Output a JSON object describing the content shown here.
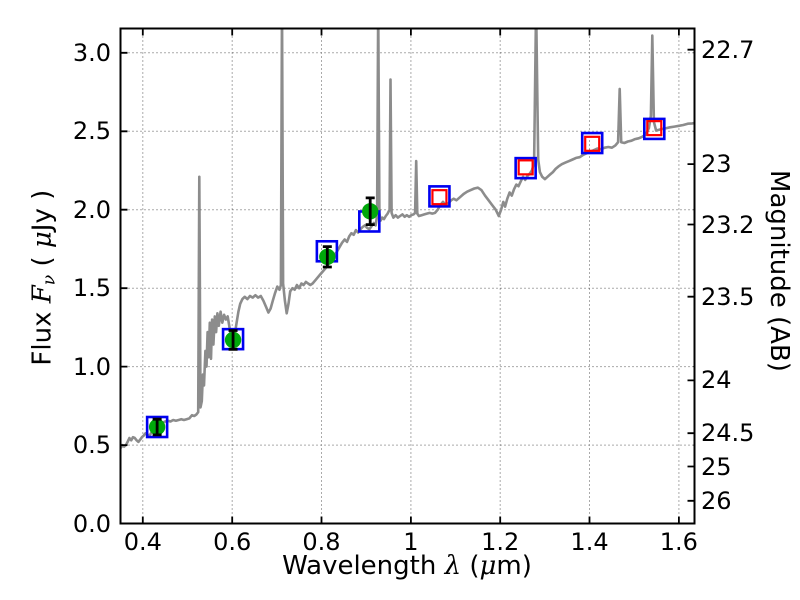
{
  "figure": {
    "background": "#ffffff",
    "frame_color": "#000000",
    "grid_color": "#555555",
    "grid_style": "dotted"
  },
  "chart_data": {
    "type": "line",
    "title": "",
    "xlabel_segments": [
      {
        "text": "Wavelength  ",
        "style": "plain"
      },
      {
        "text": "λ",
        "style": "math"
      },
      {
        "text": " (",
        "style": "plain"
      },
      {
        "text": "μ",
        "style": "math"
      },
      {
        "text": "m)",
        "style": "plain"
      }
    ],
    "ylabel_left_segments": [
      {
        "text": "Flux  ",
        "style": "plain"
      },
      {
        "text": "F",
        "style": "math"
      },
      {
        "text": "ν",
        "style": "sub"
      },
      {
        "text": "  ( ",
        "style": "plain"
      },
      {
        "text": "μ",
        "style": "math"
      },
      {
        "text": "Jy )",
        "style": "plain"
      }
    ],
    "ylabel_right_segments": [
      {
        "text": "Magnitude (AB)",
        "style": "plain"
      }
    ],
    "xlim": [
      0.35,
      1.635
    ],
    "ylim": [
      0.0,
      3.155
    ],
    "grid": true,
    "legend": "none",
    "x_ticks": [
      0.4,
      0.6,
      0.8,
      1.0,
      1.2,
      1.4,
      1.6
    ],
    "x_tick_labels": [
      "0.4",
      "0.6",
      "0.8",
      "1",
      "1.2",
      "1.4",
      "1.6"
    ],
    "y_ticks_left": [
      0.0,
      0.5,
      1.0,
      1.5,
      2.0,
      2.5,
      3.0
    ],
    "y_tick_labels_left": [
      "0.0",
      "0.5",
      "1.0",
      "1.5",
      "2.0",
      "2.5",
      "3.0"
    ],
    "y_ticks_right_mag": [
      22.7,
      23,
      23.2,
      23.5,
      24,
      24.5,
      25,
      26
    ],
    "y_tick_labels_right": [
      "22.7",
      "23",
      "23.2",
      "23.5",
      "24",
      "24.5",
      "25",
      "26"
    ],
    "mag_ab_zeropoint_ujy": 23.9,
    "series": [
      {
        "name": "model_spectrum",
        "type": "line",
        "color": "#8c8c8c",
        "points": [
          [
            0.35,
            0.48
          ],
          [
            0.354,
            0.5
          ],
          [
            0.358,
            0.49
          ],
          [
            0.362,
            0.5
          ],
          [
            0.366,
            0.52
          ],
          [
            0.37,
            0.545
          ],
          [
            0.374,
            0.53
          ],
          [
            0.378,
            0.55
          ],
          [
            0.382,
            0.545
          ],
          [
            0.386,
            0.53
          ],
          [
            0.39,
            0.52
          ],
          [
            0.394,
            0.535
          ],
          [
            0.398,
            0.55
          ],
          [
            0.402,
            0.56
          ],
          [
            0.406,
            0.575
          ],
          [
            0.41,
            0.57
          ],
          [
            0.414,
            0.555
          ],
          [
            0.418,
            0.575
          ],
          [
            0.422,
            0.59
          ],
          [
            0.426,
            0.6
          ],
          [
            0.43,
            0.605
          ],
          [
            0.434,
            0.615
          ],
          [
            0.438,
            0.625
          ],
          [
            0.442,
            0.63
          ],
          [
            0.446,
            0.645
          ],
          [
            0.45,
            0.65
          ],
          [
            0.456,
            0.655
          ],
          [
            0.462,
            0.65
          ],
          [
            0.468,
            0.66
          ],
          [
            0.474,
            0.655
          ],
          [
            0.48,
            0.66
          ],
          [
            0.486,
            0.665
          ],
          [
            0.492,
            0.66
          ],
          [
            0.498,
            0.665
          ],
          [
            0.504,
            0.67
          ],
          [
            0.51,
            0.69
          ],
          [
            0.515,
            0.685
          ],
          [
            0.52,
            0.695
          ],
          [
            0.524,
            0.71
          ],
          [
            0.5265,
            2.21
          ],
          [
            0.529,
            0.74
          ],
          [
            0.532,
            0.78
          ],
          [
            0.5345,
            0.95
          ],
          [
            0.537,
            0.88
          ],
          [
            0.54,
            1.1
          ],
          [
            0.5425,
            1.0
          ],
          [
            0.545,
            1.22
          ],
          [
            0.5475,
            1.06
          ],
          [
            0.55,
            1.28
          ],
          [
            0.5525,
            1.05
          ],
          [
            0.555,
            1.3
          ],
          [
            0.558,
            1.14
          ],
          [
            0.561,
            1.32
          ],
          [
            0.564,
            1.22
          ],
          [
            0.567,
            1.34
          ],
          [
            0.57,
            1.26
          ],
          [
            0.574,
            1.35
          ],
          [
            0.578,
            1.28
          ],
          [
            0.582,
            1.33
          ],
          [
            0.586,
            1.3
          ],
          [
            0.59,
            1.32
          ],
          [
            0.594,
            1.25
          ],
          [
            0.598,
            1.18
          ],
          [
            0.602,
            1.17
          ],
          [
            0.606,
            1.21
          ],
          [
            0.61,
            1.28
          ],
          [
            0.614,
            1.35
          ],
          [
            0.618,
            1.4
          ],
          [
            0.623,
            1.43
          ],
          [
            0.628,
            1.445
          ],
          [
            0.634,
            1.43
          ],
          [
            0.64,
            1.45
          ],
          [
            0.646,
            1.44
          ],
          [
            0.652,
            1.455
          ],
          [
            0.658,
            1.44
          ],
          [
            0.664,
            1.45
          ],
          [
            0.67,
            1.42
          ],
          [
            0.676,
            1.38
          ],
          [
            0.681,
            1.345
          ],
          [
            0.686,
            1.37
          ],
          [
            0.691,
            1.42
          ],
          [
            0.696,
            1.47
          ],
          [
            0.701,
            1.51
          ],
          [
            0.706,
            1.49
          ],
          [
            0.709,
            1.52
          ],
          [
            0.7115,
            3.3
          ],
          [
            0.714,
            1.53
          ],
          [
            0.718,
            1.42
          ],
          [
            0.722,
            1.34
          ],
          [
            0.726,
            1.4
          ],
          [
            0.73,
            1.48
          ],
          [
            0.735,
            1.5
          ],
          [
            0.74,
            1.49
          ],
          [
            0.745,
            1.52
          ],
          [
            0.75,
            1.5
          ],
          [
            0.755,
            1.53
          ],
          [
            0.76,
            1.52
          ],
          [
            0.765,
            1.54
          ],
          [
            0.77,
            1.53
          ],
          [
            0.775,
            1.52
          ],
          [
            0.78,
            1.53
          ],
          [
            0.786,
            1.55
          ],
          [
            0.792,
            1.57
          ],
          [
            0.798,
            1.59
          ],
          [
            0.804,
            1.61
          ],
          [
            0.81,
            1.63
          ],
          [
            0.816,
            1.655
          ],
          [
            0.822,
            1.68
          ],
          [
            0.828,
            1.71
          ],
          [
            0.834,
            1.73
          ],
          [
            0.84,
            1.76
          ],
          [
            0.846,
            1.79
          ],
          [
            0.852,
            1.81
          ],
          [
            0.857,
            1.795
          ],
          [
            0.862,
            1.83
          ],
          [
            0.867,
            1.85
          ],
          [
            0.872,
            1.84
          ],
          [
            0.877,
            1.87
          ],
          [
            0.882,
            1.855
          ],
          [
            0.887,
            1.875
          ],
          [
            0.892,
            1.89
          ],
          [
            0.897,
            1.9
          ],
          [
            0.902,
            1.885
          ],
          [
            0.907,
            1.875
          ],
          [
            0.912,
            1.895
          ],
          [
            0.917,
            1.915
          ],
          [
            0.921,
            1.9
          ],
          [
            0.9245,
            1.96
          ],
          [
            0.927,
            3.3
          ],
          [
            0.9295,
            1.98
          ],
          [
            0.932,
            1.93
          ],
          [
            0.936,
            1.95
          ],
          [
            0.94,
            1.94
          ],
          [
            0.944,
            1.96
          ],
          [
            0.948,
            1.975
          ],
          [
            0.9525,
            2.0
          ],
          [
            0.9545,
            2.83
          ],
          [
            0.957,
            1.98
          ],
          [
            0.961,
            1.95
          ],
          [
            0.966,
            1.965
          ],
          [
            0.971,
            1.95
          ],
          [
            0.976,
            1.96
          ],
          [
            0.981,
            1.97
          ],
          [
            0.986,
            1.955
          ],
          [
            0.991,
            1.965
          ],
          [
            0.996,
            1.955
          ],
          [
            1.001,
            1.965
          ],
          [
            1.006,
            1.97
          ],
          [
            1.0095,
            1.98
          ],
          [
            1.012,
            2.31
          ],
          [
            1.0145,
            1.975
          ],
          [
            1.018,
            1.96
          ],
          [
            1.024,
            1.965
          ],
          [
            1.03,
            1.97
          ],
          [
            1.036,
            1.975
          ],
          [
            1.042,
            1.98
          ],
          [
            1.048,
            1.975
          ],
          [
            1.054,
            1.98
          ],
          [
            1.06,
            2.0
          ],
          [
            1.066,
            2.03
          ],
          [
            1.072,
            2.05
          ],
          [
            1.078,
            2.03
          ],
          [
            1.084,
            2.04
          ],
          [
            1.09,
            2.06
          ],
          [
            1.096,
            2.07
          ],
          [
            1.102,
            2.06
          ],
          [
            1.11,
            2.08
          ],
          [
            1.118,
            2.1
          ],
          [
            1.126,
            2.115
          ],
          [
            1.134,
            2.125
          ],
          [
            1.142,
            2.135
          ],
          [
            1.15,
            2.14
          ],
          [
            1.158,
            2.125
          ],
          [
            1.166,
            2.09
          ],
          [
            1.174,
            2.06
          ],
          [
            1.182,
            2.03
          ],
          [
            1.19,
            2.0
          ],
          [
            1.197,
            1.96
          ],
          [
            1.202,
            2.0
          ],
          [
            1.207,
            2.05
          ],
          [
            1.211,
            2.02
          ],
          [
            1.216,
            2.07
          ],
          [
            1.221,
            2.11
          ],
          [
            1.226,
            2.09
          ],
          [
            1.231,
            2.13
          ],
          [
            1.236,
            2.16
          ],
          [
            1.241,
            2.15
          ],
          [
            1.246,
            2.18
          ],
          [
            1.251,
            2.21
          ],
          [
            1.256,
            2.19
          ],
          [
            1.261,
            2.215
          ],
          [
            1.266,
            2.23
          ],
          [
            1.271,
            2.25
          ],
          [
            1.276,
            2.3
          ],
          [
            1.2805,
            3.3
          ],
          [
            1.285,
            2.32
          ],
          [
            1.289,
            2.24
          ],
          [
            1.294,
            2.21
          ],
          [
            1.3,
            2.195
          ],
          [
            1.306,
            2.21
          ],
          [
            1.312,
            2.225
          ],
          [
            1.318,
            2.24
          ],
          [
            1.324,
            2.26
          ],
          [
            1.33,
            2.275
          ],
          [
            1.338,
            2.29
          ],
          [
            1.346,
            2.3
          ],
          [
            1.354,
            2.31
          ],
          [
            1.362,
            2.32
          ],
          [
            1.37,
            2.33
          ],
          [
            1.378,
            2.335
          ],
          [
            1.386,
            2.35
          ],
          [
            1.394,
            2.36
          ],
          [
            1.402,
            2.37
          ],
          [
            1.41,
            2.38
          ],
          [
            1.418,
            2.39
          ],
          [
            1.426,
            2.385
          ],
          [
            1.434,
            2.395
          ],
          [
            1.442,
            2.4
          ],
          [
            1.45,
            2.395
          ],
          [
            1.458,
            2.41
          ],
          [
            1.464,
            2.43
          ],
          [
            1.4675,
            2.77
          ],
          [
            1.471,
            2.43
          ],
          [
            1.478,
            2.425
          ],
          [
            1.486,
            2.435
          ],
          [
            1.494,
            2.44
          ],
          [
            1.502,
            2.45
          ],
          [
            1.51,
            2.455
          ],
          [
            1.518,
            2.465
          ],
          [
            1.526,
            2.48
          ],
          [
            1.533,
            2.52
          ],
          [
            1.5375,
            2.6
          ],
          [
            1.5405,
            3.11
          ],
          [
            1.544,
            2.56
          ],
          [
            1.549,
            2.505
          ],
          [
            1.556,
            2.51
          ],
          [
            1.564,
            2.515
          ],
          [
            1.572,
            2.52
          ],
          [
            1.58,
            2.525
          ],
          [
            1.59,
            2.53
          ],
          [
            1.6,
            2.535
          ],
          [
            1.61,
            2.54
          ],
          [
            1.62,
            2.548
          ],
          [
            1.63,
            2.55
          ],
          [
            1.635,
            2.552
          ]
        ]
      },
      {
        "name": "observed_photometry_circles",
        "type": "scatter_circle_errorbar",
        "color": "#00a80a",
        "errorbar_color": "#000000",
        "x": [
          0.432,
          0.602,
          0.813,
          0.909
        ],
        "y": [
          0.615,
          1.17,
          1.7,
          1.99
        ],
        "yerr": [
          0.05,
          0.06,
          0.065,
          0.085
        ]
      },
      {
        "name": "model_photometry_squares",
        "type": "scatter_square_open",
        "color": "#0000f0",
        "x": [
          0.432,
          0.602,
          0.812,
          0.907,
          1.064,
          1.257,
          1.406,
          1.545
        ],
        "y": [
          0.615,
          1.175,
          1.735,
          1.925,
          2.085,
          2.265,
          2.425,
          2.515
        ]
      },
      {
        "name": "nir_photometry_squares",
        "type": "scatter_square_open_small",
        "color": "#ff0000",
        "x": [
          1.064,
          1.257,
          1.406,
          1.545
        ],
        "y": [
          2.08,
          2.27,
          2.42,
          2.52
        ]
      }
    ]
  }
}
